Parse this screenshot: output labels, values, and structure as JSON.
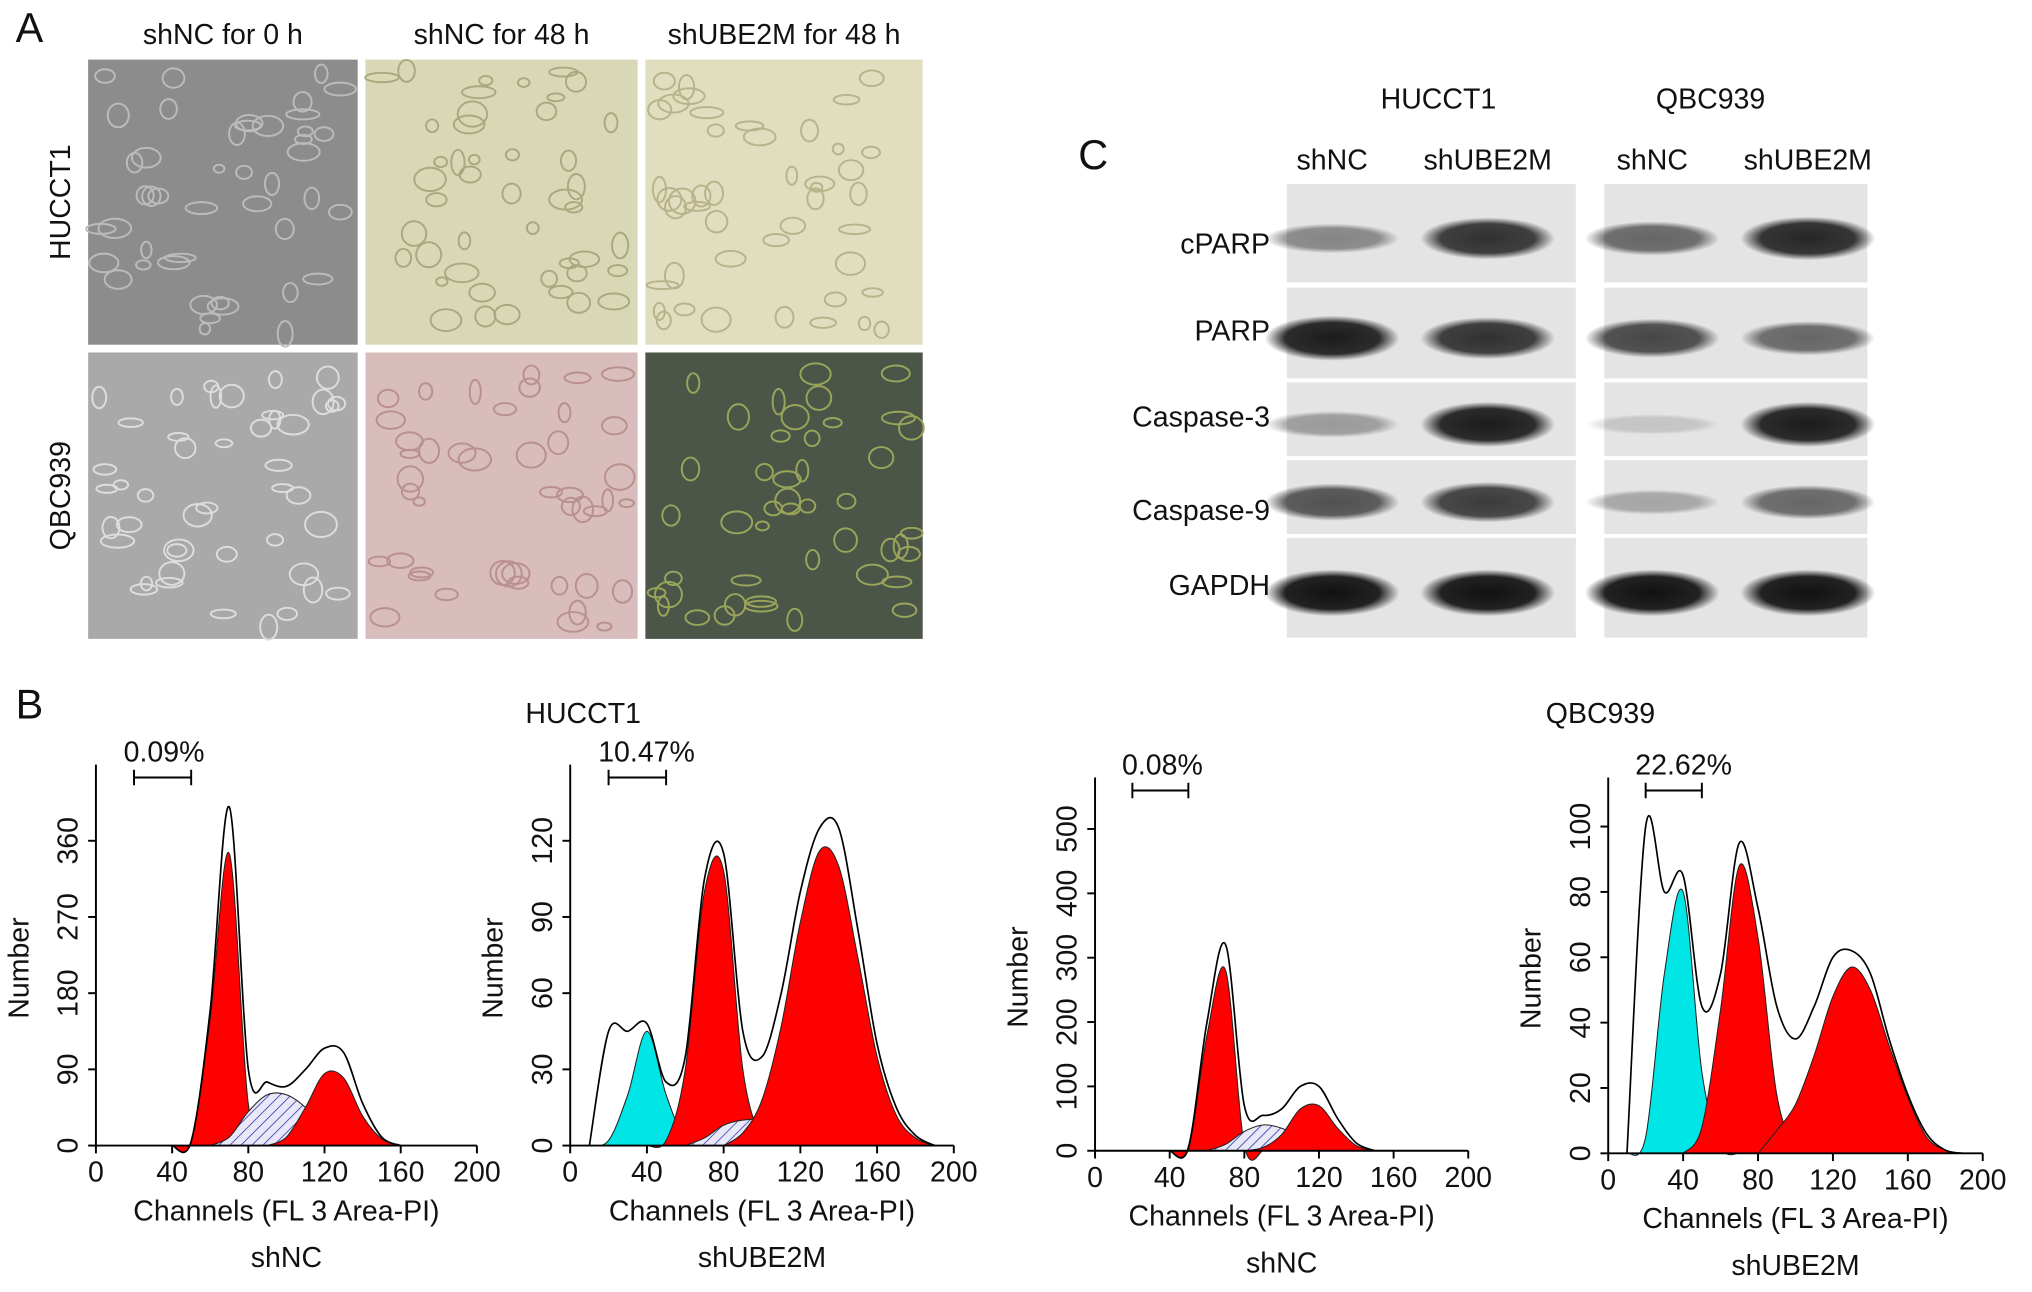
{
  "panel_a": {
    "label": "A",
    "columns": [
      "shNC for 0 h",
      "shNC for 48 h",
      "shUBE2M for 48 h"
    ],
    "rows": [
      "HUCCT1",
      "QBC939"
    ]
  },
  "panel_c": {
    "label": "C",
    "cell_lines": [
      "HUCCT1",
      "QBC939"
    ],
    "lanes": [
      "shNC",
      "shUBE2M",
      "shNC",
      "shUBE2M"
    ],
    "proteins": [
      "cPARP",
      "PARP",
      "Caspase-3",
      "Caspase-9",
      "GAPDH"
    ]
  },
  "panel_b": {
    "label": "B",
    "groups": [
      "HUCCT1",
      "QBC939"
    ]
  },
  "chart_data": [
    {
      "type": "area",
      "x_label": "Channels (FL 3 Area-PI)",
      "y_label": "Number",
      "caption": "shNC",
      "annotation": "0.09%",
      "x": [
        0,
        10,
        20,
        30,
        40,
        50,
        60,
        70,
        80,
        90,
        100,
        110,
        120,
        130,
        140,
        150,
        160,
        170,
        180,
        190,
        200
      ],
      "xlim": [
        0,
        200
      ],
      "xticks": [
        0,
        40,
        80,
        120,
        160,
        200
      ],
      "ylim": [
        0,
        450
      ],
      "yticks": [
        0,
        90,
        180,
        270,
        360
      ],
      "series": [
        {
          "color": "#ff0000",
          "fill": "solid",
          "values": [
            null,
            null,
            null,
            null,
            0,
            4,
            150,
            345,
            49,
            0,
            null,
            null,
            null,
            null,
            null,
            null,
            null,
            null,
            null,
            null,
            null
          ]
        },
        {
          "color": "#3333aa",
          "fill": "hatch",
          "values": [
            null,
            null,
            null,
            null,
            null,
            null,
            0,
            10,
            40,
            60,
            60,
            45,
            20,
            5,
            0,
            null,
            null,
            null,
            null,
            null,
            null
          ]
        },
        {
          "color": "#ff0000",
          "fill": "solid",
          "values": [
            null,
            null,
            null,
            null,
            null,
            null,
            null,
            null,
            null,
            0,
            10,
            45,
            85,
            80,
            35,
            8,
            0,
            null,
            null,
            null,
            null
          ]
        },
        {
          "color": "#000000",
          "fill": "none",
          "values": [
            null,
            null,
            null,
            null,
            0,
            5,
            160,
            400,
            90,
            75,
            70,
            90,
            115,
            110,
            50,
            10,
            0,
            null,
            null,
            null,
            null
          ]
        }
      ]
    },
    {
      "type": "area",
      "x_label": "Channels (FL 3 Area-PI)",
      "y_label": "Number",
      "caption": "shUBE2M",
      "annotation": "10.47%",
      "x": [
        0,
        10,
        20,
        30,
        40,
        50,
        60,
        70,
        80,
        90,
        100,
        110,
        120,
        130,
        140,
        150,
        160,
        170,
        180,
        190,
        200
      ],
      "xlim": [
        0,
        200
      ],
      "xticks": [
        0,
        40,
        80,
        120,
        160,
        200
      ],
      "ylim": [
        0,
        150
      ],
      "yticks": [
        0,
        30,
        60,
        90,
        120
      ],
      "series": [
        {
          "color": "#00e5e5",
          "fill": "solid",
          "values": [
            null,
            0,
            2,
            20,
            45,
            20,
            2,
            0,
            null,
            null,
            null,
            null,
            null,
            null,
            null,
            null,
            null,
            null,
            null,
            null,
            null
          ]
        },
        {
          "color": "#ff0000",
          "fill": "solid",
          "values": [
            null,
            null,
            null,
            null,
            0,
            2,
            30,
            100,
            108,
            30,
            3,
            0,
            null,
            null,
            null,
            null,
            null,
            null,
            null,
            null,
            null
          ]
        },
        {
          "color": "#3333aa",
          "fill": "hatch",
          "values": [
            null,
            null,
            null,
            null,
            null,
            null,
            0,
            3,
            8,
            10,
            10,
            8,
            5,
            2,
            0,
            null,
            null,
            null,
            null,
            null,
            null
          ]
        },
        {
          "color": "#ff0000",
          "fill": "solid",
          "values": [
            null,
            null,
            null,
            null,
            null,
            null,
            null,
            null,
            0,
            5,
            18,
            47,
            88,
            116,
            110,
            74,
            35,
            12,
            3,
            0,
            null
          ]
        },
        {
          "color": "#000000",
          "fill": "none",
          "values": [
            null,
            0,
            45,
            45,
            48,
            25,
            35,
            105,
            115,
            45,
            35,
            60,
            100,
            125,
            125,
            85,
            40,
            15,
            4,
            0,
            null
          ]
        }
      ]
    },
    {
      "type": "area",
      "x_label": "Channels (FL 3 Area-PI)",
      "y_label": "Number",
      "caption": "shNC",
      "annotation": "0.08%",
      "x": [
        0,
        10,
        20,
        30,
        40,
        50,
        60,
        70,
        80,
        90,
        100,
        110,
        120,
        130,
        140,
        150,
        160,
        170,
        180,
        190,
        200
      ],
      "xlim": [
        0,
        200
      ],
      "xticks": [
        0,
        40,
        80,
        120,
        160,
        200
      ],
      "ylim": [
        0,
        580
      ],
      "yticks": [
        0,
        100,
        200,
        300,
        400,
        500
      ],
      "series": [
        {
          "color": "#ff0000",
          "fill": "solid",
          "values": [
            null,
            null,
            null,
            null,
            0,
            2,
            180,
            280,
            8,
            0,
            null,
            null,
            null,
            null,
            null,
            null,
            null,
            null,
            null,
            null,
            null
          ]
        },
        {
          "color": "#3333aa",
          "fill": "hatch",
          "values": [
            null,
            null,
            null,
            null,
            null,
            null,
            0,
            10,
            30,
            40,
            35,
            20,
            5,
            0,
            null,
            null,
            null,
            null,
            null,
            null,
            null
          ]
        },
        {
          "color": "#ff0000",
          "fill": "solid",
          "values": [
            null,
            null,
            null,
            null,
            null,
            null,
            null,
            null,
            0,
            5,
            25,
            65,
            70,
            35,
            8,
            0,
            null,
            null,
            null,
            null,
            null
          ]
        },
        {
          "color": "#000000",
          "fill": "none",
          "values": [
            null,
            null,
            null,
            null,
            0,
            5,
            200,
            320,
            70,
            55,
            65,
            100,
            100,
            50,
            12,
            0,
            null,
            null,
            null,
            null,
            null
          ]
        }
      ]
    },
    {
      "type": "area",
      "x_label": "Channels (FL 3 Area-PI)",
      "y_label": "Number",
      "caption": "shUBE2M",
      "annotation": "22.62%",
      "x": [
        0,
        10,
        20,
        30,
        40,
        50,
        60,
        70,
        80,
        90,
        100,
        110,
        120,
        130,
        140,
        150,
        160,
        170,
        180,
        190,
        200
      ],
      "xlim": [
        0,
        200
      ],
      "xticks": [
        0,
        40,
        80,
        120,
        160,
        200
      ],
      "ylim": [
        0,
        115
      ],
      "yticks": [
        0,
        20,
        40,
        60,
        80,
        100
      ],
      "series": [
        {
          "color": "#00e5e5",
          "fill": "solid",
          "values": [
            null,
            0,
            5,
            55,
            80,
            25,
            2,
            0,
            null,
            null,
            null,
            null,
            null,
            null,
            null,
            null,
            null,
            null,
            null,
            null,
            null
          ]
        },
        {
          "color": "#ff0000",
          "fill": "solid",
          "values": [
            null,
            null,
            null,
            null,
            0,
            8,
            44,
            88,
            66,
            18,
            2,
            0,
            null,
            null,
            null,
            null,
            null,
            null,
            null,
            null,
            null
          ]
        },
        {
          "color": "#ff0000",
          "fill": "solid",
          "values": [
            null,
            null,
            null,
            null,
            null,
            null,
            null,
            null,
            0,
            7,
            15,
            30,
            48,
            57,
            50,
            33,
            17,
            5,
            1,
            0,
            null
          ]
        },
        {
          "color": "#000000",
          "fill": "none",
          "values": [
            null,
            0,
            100,
            80,
            85,
            45,
            55,
            95,
            75,
            45,
            35,
            45,
            60,
            62,
            55,
            35,
            18,
            6,
            1,
            0,
            null
          ]
        }
      ]
    }
  ]
}
